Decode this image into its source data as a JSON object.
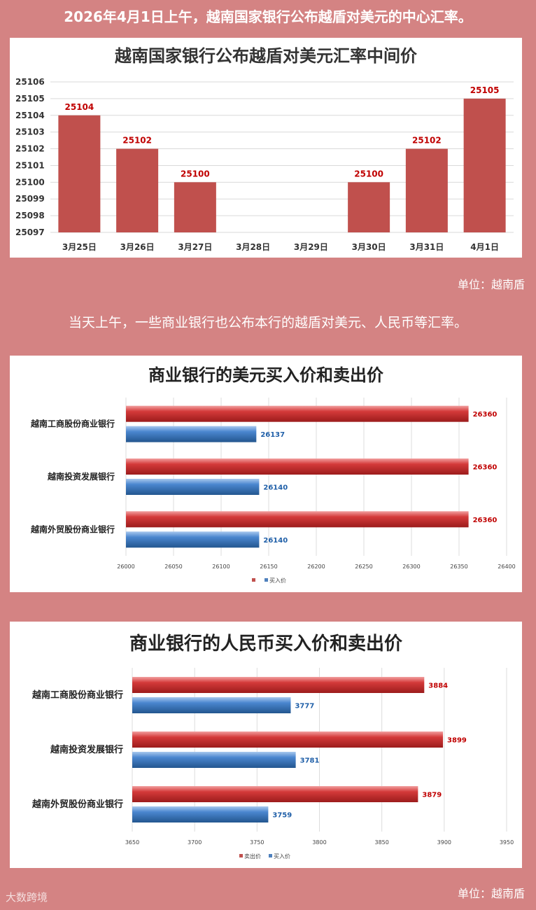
{
  "headline": "2026年4月1日上午，越南国家银行公布越盾对美元的中心汇率。",
  "subline": "当天上午，一些商业银行也公布本行的越盾对美元、人民币等汇率。",
  "unit_label_1": "单位：越南盾",
  "unit_label_2": "单位：越南盾",
  "watermark": "大数跨境",
  "colors": {
    "background": "#d48383",
    "bar_red": "#c0504d",
    "bar_blue": "#4f81bd",
    "label_red": "#c00000",
    "label_blue": "#1f5fa8"
  },
  "chart_data": [
    {
      "type": "bar",
      "title": "越南国家银行公布越盾对美元汇率中间价",
      "categories": [
        "3月25日",
        "3月26日",
        "3月27日",
        "3月28日",
        "3月29日",
        "3月30日",
        "3月31日",
        "4月1日"
      ],
      "values": [
        25104,
        25102,
        25100,
        null,
        null,
        25100,
        25102,
        25105
      ],
      "data_labels": [
        "25104",
        "25102",
        "25100",
        "",
        "",
        "25100",
        "25102",
        "25105"
      ],
      "yticks": [
        "25097",
        "25098",
        "25099",
        "25100",
        "25101",
        "25102",
        "25103",
        "25104",
        "25105",
        "25106"
      ],
      "ylim": [
        25097,
        25106
      ],
      "grid": true,
      "xlabel": "",
      "ylabel": ""
    },
    {
      "type": "bar",
      "orientation": "horizontal",
      "title": "商业银行的美元买入价和卖出价",
      "categories": [
        "越南工商股份商业银行",
        "越南投资发展银行",
        "越南外贸股份商业银行"
      ],
      "series": [
        {
          "name": "",
          "values": [
            26360,
            26360,
            26360
          ],
          "labels": [
            "26360",
            "26360",
            "26360"
          ]
        },
        {
          "name": "买入价",
          "values": [
            26137,
            26140,
            26140
          ],
          "labels": [
            "26137",
            "26140",
            "26140"
          ]
        }
      ],
      "xticks": [
        "26000",
        "26050",
        "26100",
        "26150",
        "26200",
        "26250",
        "26300",
        "26350",
        "26400"
      ],
      "xlim": [
        26000,
        26400
      ],
      "grid": true,
      "legend": "bottom"
    },
    {
      "type": "bar",
      "orientation": "horizontal",
      "title": "商业银行的人民币买入价和卖出价",
      "categories": [
        "越南工商股份商业银行",
        "越南投资发展银行",
        "越南外贸股份商业银行"
      ],
      "series": [
        {
          "name": "卖出价",
          "values": [
            3884,
            3899,
            3879
          ],
          "labels": [
            "3884",
            "3899",
            "3879"
          ]
        },
        {
          "name": "买入价",
          "values": [
            3777,
            3781,
            3759
          ],
          "labels": [
            "3777",
            "3781",
            "3759"
          ]
        }
      ],
      "xticks": [
        "3650",
        "3700",
        "3750",
        "3800",
        "3850",
        "3900",
        "3950"
      ],
      "xlim": [
        3650,
        3950
      ],
      "grid": true,
      "legend": "bottom"
    }
  ]
}
